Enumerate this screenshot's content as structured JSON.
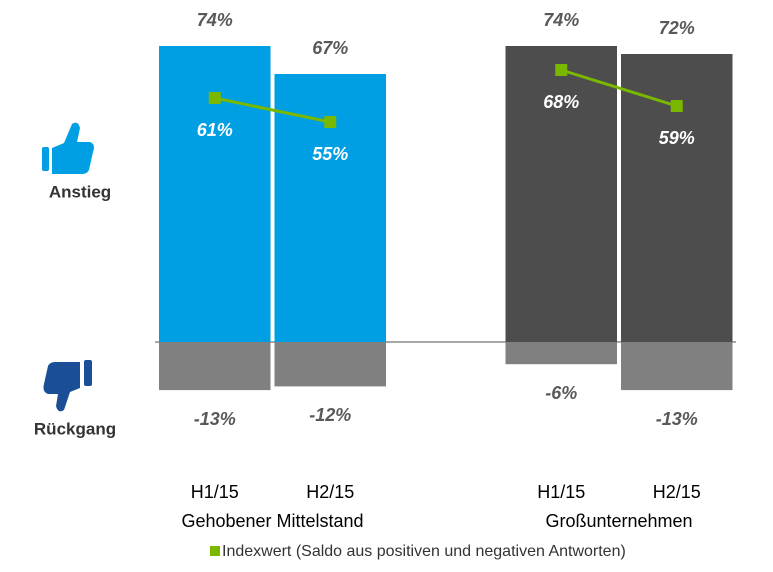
{
  "chart_data": {
    "type": "bar",
    "labels": {
      "up": "Anstieg",
      "down": "Rückgang"
    },
    "categories": [
      "H1/15",
      "H2/15",
      null,
      "H1/15",
      "H2/15"
    ],
    "groups": [
      "Gehobener Mittelstand",
      "Großunternehmen"
    ],
    "series": [
      {
        "values": [
          74,
          67,
          null,
          74,
          72
        ],
        "value_labels": [
          "74%",
          "67%",
          null,
          "74%",
          "72%"
        ],
        "colors": [
          "#009fe3",
          "#009fe3",
          null,
          "#4d4d4d",
          "#4d4d4d"
        ]
      },
      {
        "values": [
          -13,
          -12,
          null,
          -6,
          -13
        ],
        "value_labels": [
          "-13%",
          "-12%",
          null,
          "-6%",
          "-13%"
        ],
        "color": "#808080"
      },
      {
        "type": "line",
        "name": "Indexwert (Saldo aus positiven und negativen Antworten)",
        "color": "#7ab800",
        "values": [
          61,
          55,
          null,
          68,
          59
        ],
        "value_labels": [
          "61%",
          "55%",
          null,
          "68%",
          "59%"
        ]
      }
    ]
  }
}
